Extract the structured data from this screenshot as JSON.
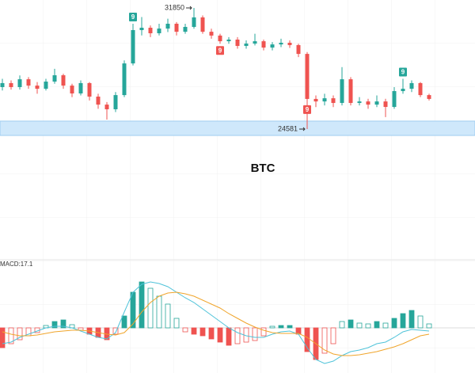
{
  "chart_data": [
    {
      "type": "candlestick",
      "title": "BTC",
      "up_color": "#26a69a",
      "down_color": "#ef5350",
      "ylim": [
        22824,
        32324
      ],
      "highlight_band": [
        24200,
        25060
      ],
      "open": [
        27100,
        27340,
        27100,
        27570,
        27190,
        27000,
        27430,
        27810,
        27190,
        26720,
        27340,
        26530,
        26050,
        25770,
        26620,
        28520,
        30520,
        30660,
        30330,
        30610,
        30900,
        30420,
        30710,
        31280,
        30420,
        30190,
        29850,
        29950,
        29570,
        29710,
        29850,
        29470,
        29660,
        29760,
        29620,
        29090,
        26390,
        26240,
        26430,
        26150,
        27570,
        26150,
        26240,
        26050,
        26240,
        25910,
        26860,
        27000,
        27340,
        26620
      ],
      "high": [
        27600,
        27500,
        27800,
        27700,
        27400,
        27600,
        28200,
        27900,
        27300,
        27500,
        27400,
        26700,
        26200,
        26800,
        28700,
        30900,
        31300,
        30800,
        30900,
        31200,
        31000,
        30900,
        31850,
        31400,
        30600,
        30300,
        30100,
        30100,
        29900,
        30300,
        29950,
        29800,
        30000,
        29900,
        29700,
        29200,
        26600,
        26700,
        26600,
        28300,
        27700,
        26500,
        26400,
        26600,
        26400,
        27100,
        27600,
        27500,
        27400,
        26700
      ],
      "low": [
        26900,
        26950,
        26950,
        27000,
        26700,
        26900,
        27300,
        27000,
        26500,
        26600,
        26300,
        25800,
        25150,
        25600,
        26500,
        28400,
        30200,
        30100,
        30200,
        30400,
        30200,
        30300,
        30600,
        30300,
        30000,
        29700,
        29700,
        29400,
        29400,
        29600,
        29300,
        29300,
        29500,
        29450,
        28900,
        24581,
        25900,
        26000,
        25900,
        26000,
        26000,
        26000,
        25800,
        25900,
        25300,
        25800,
        26700,
        26800,
        26500,
        26300
      ],
      "close": [
        27340,
        27100,
        27570,
        27190,
        27000,
        27430,
        27810,
        27190,
        26720,
        27340,
        26530,
        26050,
        25770,
        26620,
        28520,
        30520,
        30660,
        30330,
        30610,
        30900,
        30420,
        30710,
        31280,
        30420,
        30190,
        29850,
        29950,
        29570,
        29710,
        29850,
        29470,
        29660,
        29760,
        29620,
        29090,
        26390,
        26240,
        26430,
        26150,
        27570,
        26150,
        26240,
        26050,
        26240,
        25910,
        26860,
        27000,
        27340,
        26620,
        26390
      ],
      "high_label": {
        "index": 22,
        "label": "31850"
      },
      "low_label": {
        "index": 35,
        "label": "24581"
      },
      "markers": [
        {
          "index": 15,
          "label": "9",
          "position": "above",
          "color": "#26a69a"
        },
        {
          "index": 25,
          "label": "9",
          "position": "below",
          "color": "#ef5350"
        },
        {
          "index": 35,
          "label": "9",
          "position": "below",
          "color": "#ef5350"
        },
        {
          "index": 46,
          "label": "9",
          "position": "above",
          "color": "#26a69a"
        }
      ]
    },
    {
      "type": "macd",
      "label": "MACD:17.1",
      "label_color": "#26a69a",
      "ylim": [
        -56,
        84
      ],
      "histogram": [
        -25,
        -20,
        -15,
        -10,
        -6,
        3,
        8,
        10,
        4,
        -3,
        -8,
        -12,
        -15,
        -8,
        15,
        45,
        58,
        50,
        40,
        30,
        12,
        -5,
        -8,
        -10,
        -14,
        -18,
        -22,
        -20,
        -18,
        -16,
        -10,
        2,
        3,
        3,
        -8,
        -30,
        -40,
        -32,
        -20,
        8,
        10,
        6,
        5,
        8,
        6,
        12,
        18,
        22,
        15,
        5
      ],
      "up_color": "#26a69a",
      "down_color": "#ef5350",
      "dif": {
        "color": "#4fc3d9",
        "values": [
          -20,
          -18,
          -12,
          -8,
          -4,
          0,
          2,
          2,
          0,
          -4,
          -8,
          -12,
          -14,
          -6,
          20,
          45,
          55,
          58,
          56,
          52,
          45,
          38,
          32,
          24,
          16,
          8,
          0,
          -6,
          -10,
          -12,
          -12,
          -8,
          -5,
          -4,
          -8,
          -25,
          -40,
          -45,
          -42,
          -35,
          -30,
          -28,
          -25,
          -20,
          -18,
          -12,
          -5,
          -2,
          -3,
          -4
        ]
      },
      "dea": {
        "color": "#f0a52b",
        "values": [
          -5,
          -8,
          -10,
          -10,
          -9,
          -7,
          -5,
          -4,
          -3,
          -3,
          -4,
          -6,
          -8,
          -9,
          -6,
          5,
          20,
          32,
          40,
          44,
          45,
          43,
          40,
          35,
          30,
          25,
          18,
          12,
          6,
          1,
          -3,
          -6,
          -7,
          -7,
          -7,
          -12,
          -20,
          -28,
          -33,
          -35,
          -35,
          -34,
          -32,
          -30,
          -27,
          -24,
          -20,
          -15,
          -10,
          -8
        ]
      }
    }
  ]
}
